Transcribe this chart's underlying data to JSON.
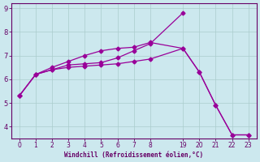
{
  "xlabel": "Windchill (Refroidissement éolien,°C)",
  "bg_color": "#cce8ee",
  "line_color": "#990099",
  "marker_color": "#990099",
  "grid_color": "#aacccc",
  "axis_color": "#660066",
  "tick_color": "#660066",
  "label_color": "#660066",
  "xtick_labels": [
    "0",
    "1",
    "2",
    "3",
    "4",
    "5",
    "6",
    "7",
    "8",
    "19",
    "20",
    "21",
    "22",
    "23"
  ],
  "xtick_pos": [
    0,
    1,
    2,
    3,
    4,
    5,
    6,
    7,
    8,
    10,
    11,
    12,
    13,
    14
  ],
  "line1_pos": [
    0,
    1,
    2,
    3,
    4,
    5,
    6,
    7,
    8,
    10
  ],
  "line1_y": [
    5.3,
    6.2,
    6.4,
    6.6,
    6.65,
    6.7,
    6.9,
    7.2,
    7.5,
    8.8
  ],
  "line2_pos": [
    0,
    1,
    2,
    3,
    4,
    5,
    6,
    7,
    8,
    10,
    11,
    12,
    13,
    14
  ],
  "line2_y": [
    5.3,
    6.2,
    6.4,
    6.5,
    6.55,
    6.6,
    6.65,
    6.75,
    6.85,
    7.3,
    6.3,
    4.9,
    3.65,
    3.65
  ],
  "line3_pos": [
    0,
    1,
    2,
    3,
    4,
    5,
    6,
    7,
    8,
    10,
    11,
    12,
    13,
    14
  ],
  "line3_y": [
    5.3,
    6.2,
    6.5,
    6.75,
    7.0,
    7.2,
    7.3,
    7.35,
    7.55,
    7.3,
    6.3,
    4.9,
    3.65,
    3.65
  ],
  "xlim": [
    -0.5,
    14.5
  ],
  "ylim": [
    3.5,
    9.2
  ],
  "yticks": [
    4,
    5,
    6,
    7,
    8,
    9
  ]
}
